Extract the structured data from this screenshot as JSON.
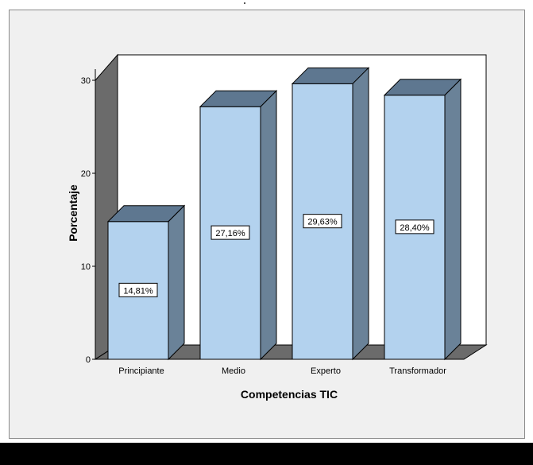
{
  "chart_data": {
    "type": "bar",
    "categories": [
      "Principiante",
      "Medio",
      "Experto",
      "Transformador"
    ],
    "values": [
      14.81,
      27.16,
      29.63,
      28.4
    ],
    "value_labels": [
      "14,81%",
      "27,16%",
      "29,63%",
      "28,40%"
    ],
    "xlabel": "Competencias TIC",
    "ylabel": "Porcentaje",
    "ylim": [
      0,
      30
    ],
    "yticks": [
      "0",
      "10",
      "20",
      "30"
    ],
    "grid": false,
    "legend": "none",
    "colors": {
      "bar_front": "#b3d2ee",
      "bar_top": "#5e7790",
      "bar_side": "#6a8298",
      "floor": "#6b6b6b",
      "wall": "#ffffff",
      "frame_bg": "#f0f0f0"
    }
  }
}
